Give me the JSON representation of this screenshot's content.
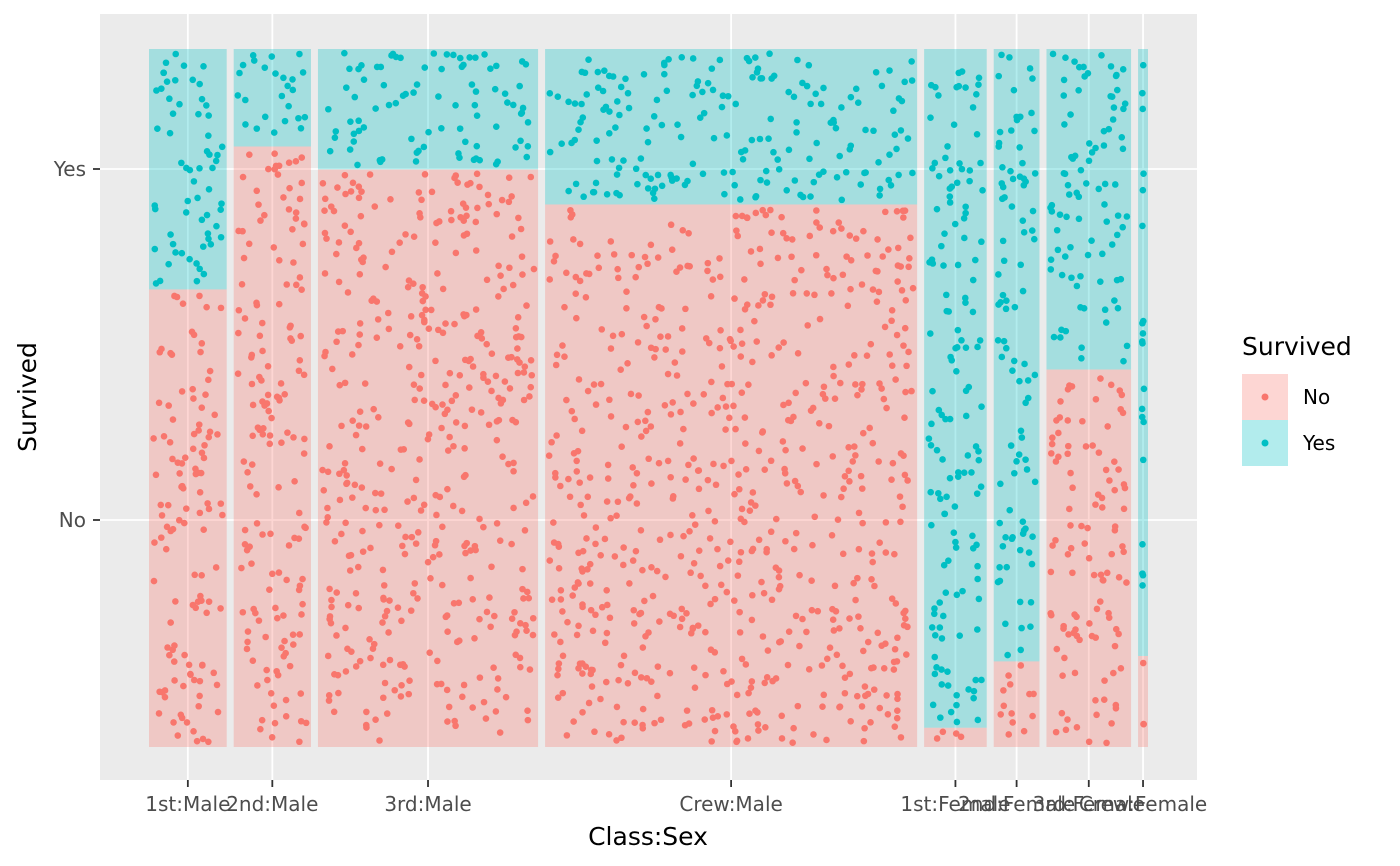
{
  "chart_data": {
    "type": "mosaic",
    "xlabel": "Class:Sex",
    "ylabel": "Survived",
    "y_categories": [
      "No",
      "Yes"
    ],
    "legend": {
      "title": "Survived",
      "placement": "right",
      "entries": [
        {
          "label": "No",
          "color": "#F8766D"
        },
        {
          "label": "Yes",
          "color": "#00BFC4"
        }
      ]
    },
    "colors": {
      "No": "#F8766D",
      "Yes": "#00BFC4",
      "panel": "#EBEBEB",
      "grid": "#FFFFFF"
    },
    "grid": true,
    "points_jittered": true,
    "cells": [
      {
        "group": "1st:Male",
        "count": 180,
        "no": 118,
        "yes": 62
      },
      {
        "group": "2nd:Male",
        "count": 179,
        "no": 154,
        "yes": 25
      },
      {
        "group": "3rd:Male",
        "count": 510,
        "no": 422,
        "yes": 88
      },
      {
        "group": "Crew:Male",
        "count": 862,
        "no": 670,
        "yes": 192
      },
      {
        "group": "1st:Female",
        "count": 145,
        "no": 4,
        "yes": 141
      },
      {
        "group": "2nd:Female",
        "count": 106,
        "no": 13,
        "yes": 93
      },
      {
        "group": "3rd:Female",
        "count": 196,
        "no": 106,
        "yes": 90
      },
      {
        "group": "Crew:Female",
        "count": 23,
        "no": 3,
        "yes": 20
      }
    ]
  }
}
